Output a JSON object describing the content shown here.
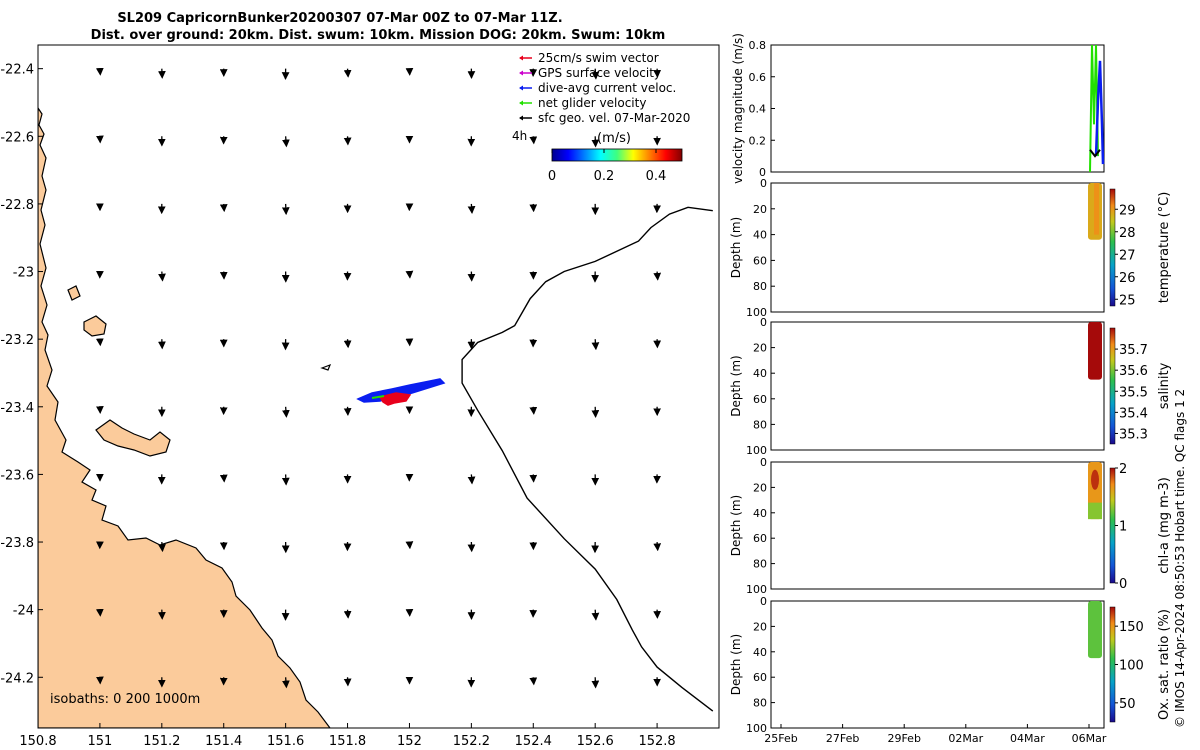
{
  "title": {
    "line1": "SL209 CapricornBunker20200307 07-Mar 00Z to 07-Mar 11Z.",
    "line2": "Dist. over ground: 20km. Dist. swum: 10km. Mission DOG: 20km. Swum: 10km"
  },
  "copyright": "© IMOS 14-Apr-2024 08:50:53 Hobart time. QC flags 1  2",
  "colors": {
    "land": "#fbcb9b",
    "swim": "#e8001c",
    "gps": "#cc00cc",
    "current": "#0a1ef0",
    "net": "#22e000",
    "geo": "#000000"
  },
  "chart_data": [
    {
      "type": "map",
      "xlabel": "",
      "ylabel": "",
      "xlim": [
        150.8,
        153.0
      ],
      "ylim": [
        -24.35,
        -22.33
      ],
      "x_ticks": [
        "150.8",
        "151",
        "151.2",
        "151.4",
        "151.6",
        "151.8",
        "152",
        "152.2",
        "152.4",
        "152.6",
        "152.8"
      ],
      "y_ticks": [
        "-22.4",
        "-22.6",
        "-22.8",
        "-23",
        "-23.2",
        "-23.4",
        "-23.6",
        "-23.8",
        "-24",
        "-24.2"
      ],
      "legend": [
        {
          "label": "25cm/s swim vector",
          "color": "#e8001c"
        },
        {
          "label": "GPS surface velocity",
          "color": "#cc00cc"
        },
        {
          "label": "dive-avg current veloc.",
          "color": "#0a1ef0"
        },
        {
          "label": "net glider velocity",
          "color": "#22e000"
        },
        {
          "label": "sfc geo. vel. 07-Mar-2020",
          "color": "#000000"
        }
      ],
      "legend_time_label": "4h",
      "colorbar": {
        "label": "(m/s)",
        "ticks": [
          "0",
          "0.2",
          "0.4"
        ],
        "range": [
          0,
          0.5
        ]
      },
      "isobaths_label": "isobaths: 0   200  1000m",
      "isobath_1000m": [
        [
          152.98,
          -22.82
        ],
        [
          152.9,
          -22.81
        ],
        [
          152.84,
          -22.83
        ],
        [
          152.78,
          -22.87
        ],
        [
          152.74,
          -22.91
        ],
        [
          152.6,
          -22.97
        ],
        [
          152.5,
          -23.0
        ],
        [
          152.44,
          -23.03
        ],
        [
          152.39,
          -23.08
        ],
        [
          152.34,
          -23.16
        ],
        [
          152.3,
          -23.18
        ],
        [
          152.22,
          -23.21
        ],
        [
          152.17,
          -23.26
        ],
        [
          152.17,
          -23.33
        ],
        [
          152.22,
          -23.41
        ],
        [
          152.3,
          -23.53
        ],
        [
          152.38,
          -23.67
        ],
        [
          152.5,
          -23.79
        ],
        [
          152.6,
          -23.88
        ],
        [
          152.67,
          -23.97
        ],
        [
          152.72,
          -24.06
        ],
        [
          152.75,
          -24.11
        ],
        [
          152.8,
          -24.17
        ],
        [
          152.88,
          -24.23
        ],
        [
          152.98,
          -24.3
        ]
      ],
      "geo_vectors_dlon": [
        151.0,
        151.2,
        151.4,
        151.6,
        151.8,
        152.0,
        152.2,
        152.4,
        152.6,
        152.8
      ],
      "geo_vectors_dlat": [
        -22.4,
        -22.6,
        -22.8,
        -23.0,
        -23.2,
        -23.4,
        -23.6,
        -23.8,
        -24.0,
        -24.2
      ]
    },
    {
      "type": "line",
      "ylabel": "velocity magnitude (m/s)",
      "ylim": [
        0,
        0.8
      ],
      "y_ticks": [
        "0",
        "0.2",
        "0.4",
        "0.6",
        "0.8"
      ]
    },
    {
      "type": "heatmap",
      "variable": "temperature (°C)",
      "ylabel": "Depth (m)",
      "ylim": [
        100,
        0
      ],
      "y_ticks": [
        "0",
        "20",
        "40",
        "60",
        "80",
        "100"
      ],
      "colorbar_ticks": [
        "25",
        "26",
        "27",
        "28",
        "29"
      ],
      "crange": [
        24.7,
        29.9
      ],
      "profile_depth_m": [
        0,
        44
      ],
      "typical_value": 28.6
    },
    {
      "type": "heatmap",
      "variable": "salinity",
      "ylabel": "Depth (m)",
      "ylim": [
        100,
        0
      ],
      "y_ticks": [
        "0",
        "20",
        "40",
        "60",
        "80",
        "100"
      ],
      "colorbar_ticks": [
        "35.3",
        "35.4",
        "35.5",
        "35.6",
        "35.7"
      ],
      "crange": [
        35.25,
        35.8
      ],
      "profile_depth_m": [
        0,
        45
      ],
      "typical_value": 35.8
    },
    {
      "type": "heatmap",
      "variable": "chl-a (mg m-3)",
      "ylabel": "Depth (m)",
      "ylim": [
        100,
        0
      ],
      "y_ticks": [
        "0",
        "20",
        "40",
        "60",
        "80",
        "100"
      ],
      "colorbar_ticks": [
        "0",
        "1",
        "2"
      ],
      "crange": [
        0,
        2
      ],
      "profile_depth_m": [
        0,
        45
      ],
      "typical_value": 1.6
    },
    {
      "type": "heatmap",
      "variable": "Ox. sat. ratio (%)",
      "ylabel": "Depth (m)",
      "ylim": [
        100,
        0
      ],
      "y_ticks": [
        "0",
        "20",
        "40",
        "60",
        "80",
        "100"
      ],
      "colorbar_ticks": [
        "50",
        "100",
        "150"
      ],
      "crange": [
        25,
        175
      ],
      "profile_depth_m": [
        0,
        45
      ],
      "typical_value": 108,
      "x_ticks": [
        "25Feb",
        "27Feb",
        "29Feb",
        "02Mar",
        "04Mar",
        "06Mar"
      ]
    }
  ]
}
